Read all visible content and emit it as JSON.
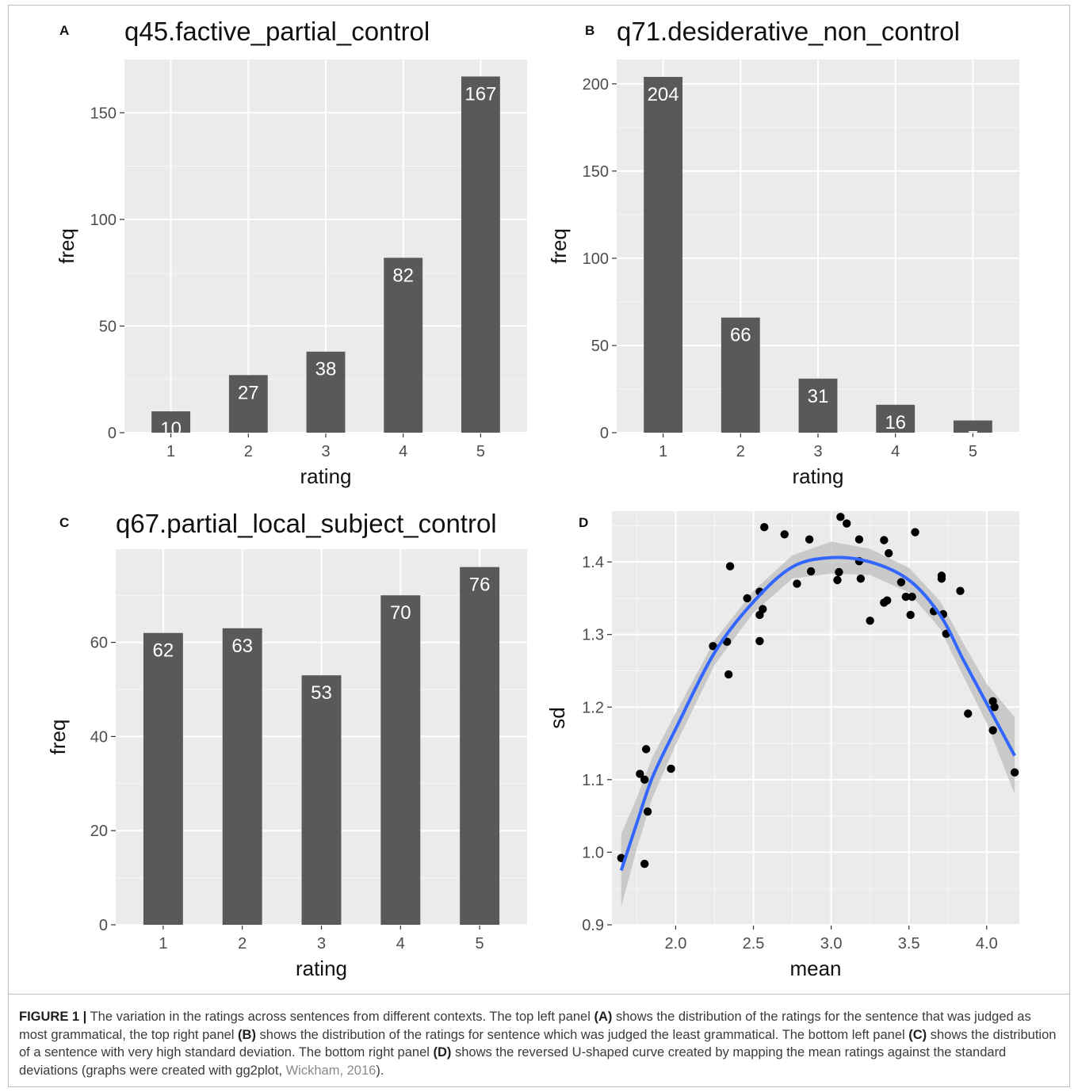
{
  "chart_data": [
    {
      "panel_letter": "A",
      "type": "bar",
      "title": "q45.factive_partial_control",
      "xlabel": "rating",
      "ylabel": "freq",
      "categories": [
        "1",
        "2",
        "3",
        "4",
        "5"
      ],
      "values": [
        10,
        27,
        38,
        82,
        167
      ],
      "ylim": [
        0,
        175
      ],
      "yticks": [
        0,
        50,
        100,
        150
      ],
      "grid": true
    },
    {
      "panel_letter": "B",
      "type": "bar",
      "title": "q71.desiderative_non_control",
      "xlabel": "rating",
      "ylabel": "freq",
      "categories": [
        "1",
        "2",
        "3",
        "4",
        "5"
      ],
      "values": [
        204,
        66,
        31,
        16,
        7
      ],
      "ylim": [
        0,
        214
      ],
      "yticks": [
        0,
        50,
        100,
        150,
        200
      ],
      "grid": true
    },
    {
      "panel_letter": "C",
      "type": "bar",
      "title": "q67.partial_local_subject_control",
      "xlabel": "rating",
      "ylabel": "freq",
      "categories": [
        "1",
        "2",
        "3",
        "4",
        "5"
      ],
      "values": [
        62,
        63,
        53,
        70,
        76
      ],
      "ylim": [
        0,
        79.8
      ],
      "yticks": [
        0,
        20,
        40,
        60
      ],
      "grid": true
    },
    {
      "panel_letter": "D",
      "type": "scatter",
      "title": "",
      "xlabel": "mean",
      "ylabel": "sd",
      "xlim": [
        1.59,
        4.21
      ],
      "ylim": [
        0.9,
        1.47
      ],
      "xticks": [
        2.0,
        2.5,
        3.0,
        3.5,
        4.0
      ],
      "yticks": [
        0.9,
        1.0,
        1.1,
        1.2,
        1.3,
        1.4
      ],
      "grid": true,
      "points": [
        [
          1.65,
          0.992
        ],
        [
          1.8,
          0.984
        ],
        [
          1.82,
          1.056
        ],
        [
          1.8,
          1.1
        ],
        [
          1.77,
          1.108
        ],
        [
          1.81,
          1.142
        ],
        [
          1.97,
          1.115
        ],
        [
          2.24,
          1.284
        ],
        [
          2.34,
          1.245
        ],
        [
          2.33,
          1.29
        ],
        [
          2.35,
          1.394
        ],
        [
          2.46,
          1.35
        ],
        [
          2.54,
          1.291
        ],
        [
          2.54,
          1.327
        ],
        [
          2.56,
          1.335
        ],
        [
          2.54,
          1.359
        ],
        [
          2.57,
          1.448
        ],
        [
          2.7,
          1.438
        ],
        [
          2.78,
          1.37
        ],
        [
          2.86,
          1.431
        ],
        [
          2.87,
          1.387
        ],
        [
          3.04,
          1.375
        ],
        [
          3.05,
          1.386
        ],
        [
          3.06,
          1.462
        ],
        [
          3.1,
          1.453
        ],
        [
          3.18,
          1.401
        ],
        [
          3.18,
          1.431
        ],
        [
          3.19,
          1.377
        ],
        [
          3.25,
          1.319
        ],
        [
          3.34,
          1.43
        ],
        [
          3.34,
          1.344
        ],
        [
          3.36,
          1.347
        ],
        [
          3.37,
          1.412
        ],
        [
          3.45,
          1.372
        ],
        [
          3.48,
          1.352
        ],
        [
          3.51,
          1.327
        ],
        [
          3.52,
          1.352
        ],
        [
          3.54,
          1.441
        ],
        [
          3.66,
          1.332
        ],
        [
          3.71,
          1.381
        ],
        [
          3.71,
          1.377
        ],
        [
          3.72,
          1.328
        ],
        [
          3.74,
          1.301
        ],
        [
          3.83,
          1.36
        ],
        [
          3.88,
          1.191
        ],
        [
          4.04,
          1.168
        ],
        [
          4.04,
          1.208
        ],
        [
          4.05,
          1.2
        ],
        [
          4.18,
          1.11
        ]
      ],
      "smooth_line": [
        [
          1.65,
          0.975
        ],
        [
          1.75,
          1.04
        ],
        [
          1.85,
          1.103
        ],
        [
          2.0,
          1.17
        ],
        [
          2.25,
          1.275
        ],
        [
          2.5,
          1.345
        ],
        [
          2.75,
          1.393
        ],
        [
          3.0,
          1.406
        ],
        [
          3.25,
          1.4
        ],
        [
          3.5,
          1.375
        ],
        [
          3.7,
          1.327
        ],
        [
          3.85,
          1.265
        ],
        [
          4.0,
          1.205
        ],
        [
          4.18,
          1.133
        ]
      ],
      "smooth_band": [
        [
          1.65,
          0.925,
          1.025
        ],
        [
          1.75,
          1.005,
          1.075
        ],
        [
          1.85,
          1.075,
          1.131
        ],
        [
          2.0,
          1.148,
          1.192
        ],
        [
          2.25,
          1.258,
          1.292
        ],
        [
          2.5,
          1.33,
          1.36
        ],
        [
          2.75,
          1.377,
          1.409
        ],
        [
          3.0,
          1.384,
          1.428
        ],
        [
          3.25,
          1.382,
          1.418
        ],
        [
          3.5,
          1.358,
          1.392
        ],
        [
          3.7,
          1.308,
          1.346
        ],
        [
          3.85,
          1.242,
          1.288
        ],
        [
          4.0,
          1.178,
          1.232
        ],
        [
          4.18,
          1.08,
          1.186
        ]
      ]
    }
  ],
  "colors": {
    "panel_background": "#ebebeb",
    "grid_line": "#ffffff",
    "bar_fill": "#595959",
    "bar_label": "#ffffff",
    "point": "#000000",
    "smooth_line": "#3366ff",
    "smooth_band": "#bdbdbd",
    "axis_text": "#4d4d4d",
    "axis_title": "#111111"
  },
  "caption": {
    "label": "FIGURE 1 |",
    "segments": [
      " The variation in the ratings across sentences from different contexts. The top left panel ",
      "(A)",
      " shows the distribution of the ratings for the sentence that was judged as most grammatical, the top right panel ",
      "(B)",
      " shows the distribution of the ratings for sentence which was judged the least grammatical. The bottom left panel ",
      "(C)",
      " shows the distribution of a sentence with very high standard deviation. The bottom right panel ",
      "(D)",
      " shows the reversed U-shaped curve created by mapping the mean ratings against the standard deviations (graphs were created with gg2plot, ",
      "Wickham, 2016",
      ")."
    ]
  }
}
